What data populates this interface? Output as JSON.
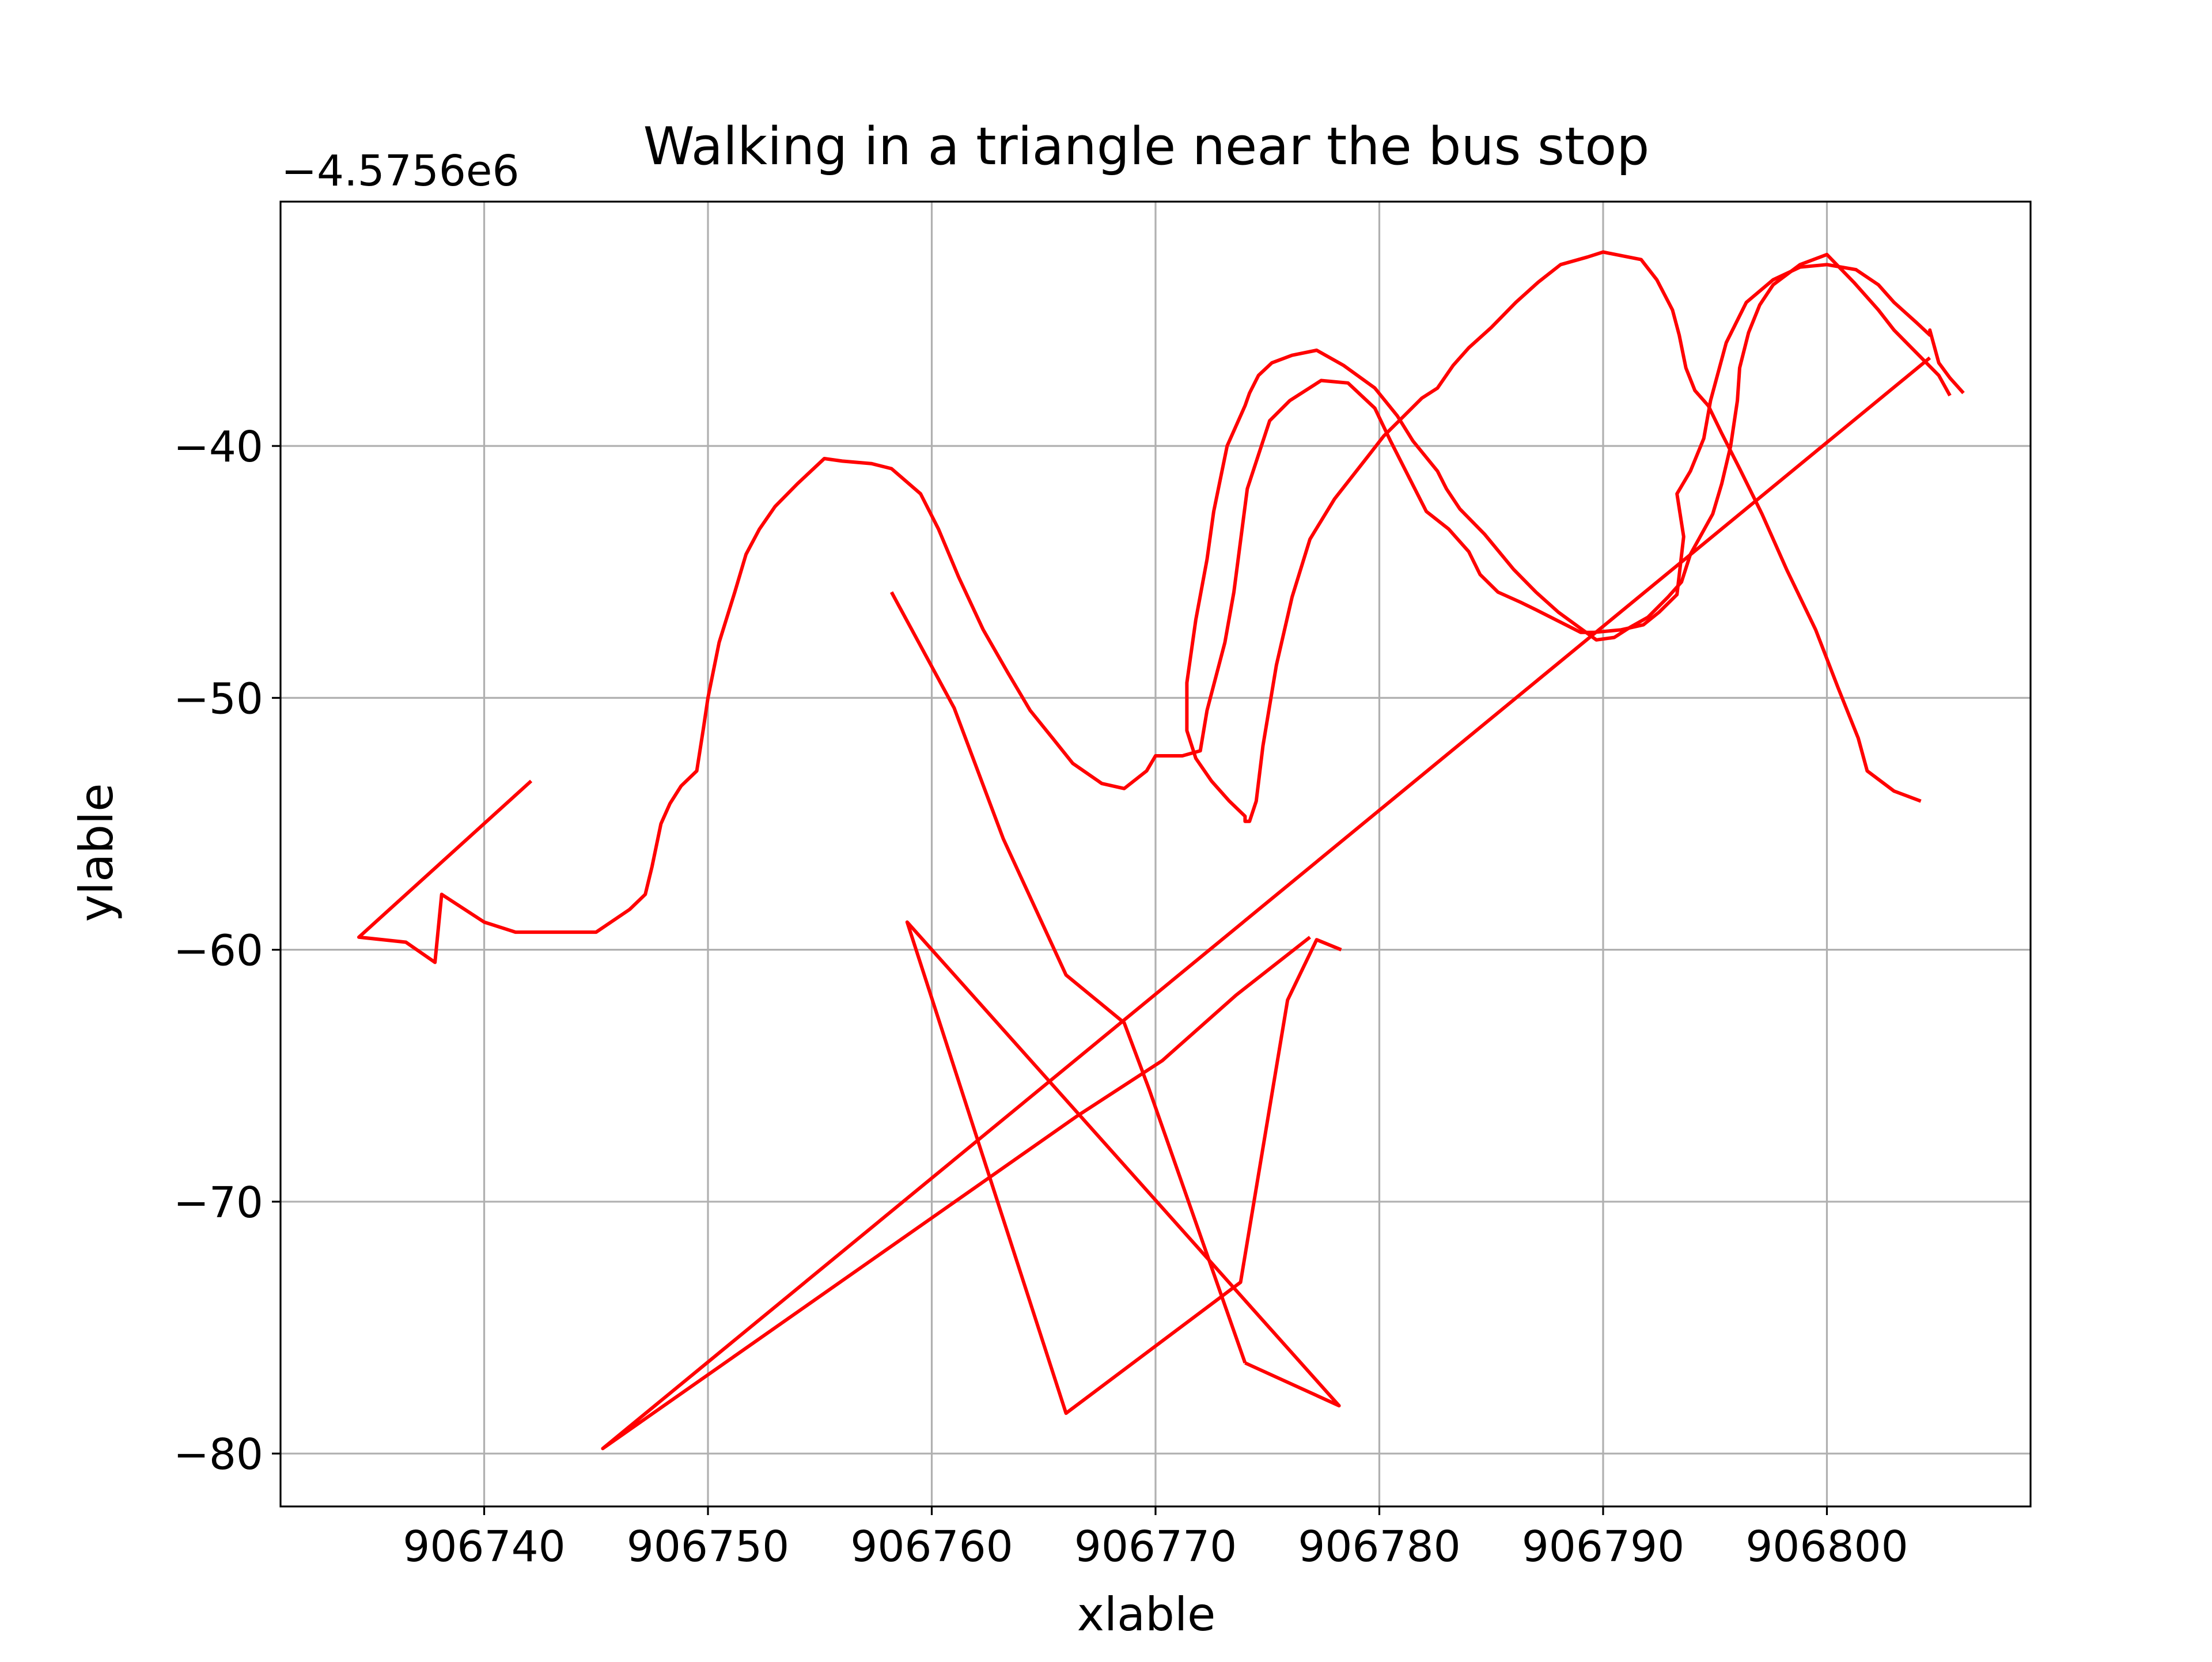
{
  "chart_data": {
    "type": "line",
    "title": "Walking in a triangle near the bus stop",
    "xlabel": "xlable",
    "ylabel": "ylable",
    "y_offset_label": "−4.5756e6",
    "xlim": [
      906730.9,
      906809.1
    ],
    "ylim": [
      -82.1,
      -30.3
    ],
    "xticks": [
      906740,
      906750,
      906760,
      906770,
      906780,
      906790,
      906800
    ],
    "xtick_labels": [
      "906740",
      "906750",
      "906760",
      "906770",
      "906780",
      "906790",
      "906800"
    ],
    "yticks": [
      -40,
      -50,
      -60,
      -70,
      -80
    ],
    "ytick_labels": [
      "−40",
      "−50",
      "−60",
      "−70",
      "−80"
    ],
    "grid": true,
    "colors": {
      "line": "#ff0000",
      "grid": "#b0b0b0",
      "axes": "#000000"
    },
    "series": [
      {
        "x": [
          906742.1,
          906734.4,
          906736.5,
          906737.8,
          906738.1,
          906740.0,
          906741.4,
          906745.0,
          906746.5,
          906747.2,
          906747.5,
          906747.9,
          906748.3,
          906748.8,
          906749.5,
          906749.8,
          906750.0,
          906750.5,
          906751.2,
          906751.7,
          906752.3,
          906753.0,
          906754.0,
          906755.2,
          906756.0,
          906757.3,
          906758.2,
          906759.5,
          906760.3,
          906761.2,
          906762.3,
          906763.4,
          906764.4,
          906765.4,
          906766.3,
          906767.6,
          906768.6,
          906769.6,
          906770.0,
          906771.2,
          906772.0,
          906772.3,
          906773.1,
          906773.5,
          906774.1,
          906775.1,
          906776.0,
          906777.4,
          906778.6,
          906779.8,
          906780.5,
          906781.3,
          906782.1,
          906783.1,
          906784.0,
          906784.5,
          906785.3,
          906786.3,
          906787.0,
          906789.0,
          906789.6,
          906790.8,
          906791.8,
          906792.5,
          906793.3,
          906793.6,
          906793.3,
          906793.9,
          906794.5,
          906794.8,
          906795.5,
          906796.4,
          906797.6,
          906798.8,
          906800.0,
          906801.3,
          906802.3,
          906803.0,
          906804.0,
          906804.6,
          906804.6,
          906805.0,
          906805.5,
          906806.1
        ],
        "y": [
          -53.3,
          -59.5,
          -59.7,
          -60.5,
          -57.8,
          -58.9,
          -59.3,
          -59.3,
          -58.4,
          -57.8,
          -56.7,
          -55.0,
          -54.2,
          -53.5,
          -52.9,
          -51.2,
          -50.0,
          -47.8,
          -45.8,
          -44.3,
          -43.3,
          -42.4,
          -41.5,
          -40.5,
          -40.6,
          -40.7,
          -40.9,
          -41.9,
          -43.3,
          -45.2,
          -47.3,
          -49.0,
          -50.5,
          -51.6,
          -52.6,
          -53.4,
          -53.6,
          -52.9,
          -52.3,
          -52.3,
          -52.1,
          -50.5,
          -47.8,
          -45.8,
          -41.7,
          -39.0,
          -38.2,
          -37.4,
          -37.5,
          -38.5,
          -39.8,
          -41.2,
          -42.6,
          -43.3,
          -44.2,
          -45.1,
          -45.8,
          -46.2,
          -46.5,
          -47.4,
          -47.4,
          -47.3,
          -47.1,
          -46.6,
          -45.9,
          -43.6,
          -41.9,
          -41.0,
          -39.7,
          -38.2,
          -35.9,
          -34.3,
          -33.4,
          -32.9,
          -32.8,
          -33.0,
          -33.6,
          -34.3,
          -35.1,
          -35.6,
          -35.4,
          -36.7,
          -37.3,
          -37.9
        ]
      },
      {
        "x": [
          906805.5,
          906805.0,
          906804.0,
          906803.0,
          906802.3,
          906801.2,
          906800.0,
          906798.8,
          906797.6,
          906797.0,
          906796.5,
          906796.1,
          906796.0,
          906795.7,
          906795.3,
          906794.9,
          906793.9,
          906793.5,
          906792.9,
          906792.0,
          906791.2,
          906790.5,
          906789.7,
          906788.0,
          906787.0,
          906786.0,
          906784.7,
          906783.6,
          906783.0,
          906782.6,
          906781.5,
          906780.8,
          906779.8,
          906778.4,
          906777.2,
          906776.1,
          906775.2,
          906774.6,
          906774.2,
          906774.0,
          906773.2,
          906772.6,
          906772.3,
          906771.8,
          906771.4,
          906771.4,
          906771.8,
          906772.5,
          906773.3,
          906774.0,
          906774.0,
          906774.2,
          906774.5,
          906774.8,
          906775.4,
          906776.1,
          906776.9,
          906778.0,
          906779.5,
          906780.2,
          906781.0,
          906781.9,
          906782.6,
          906783.3,
          906784.0,
          906785.0,
          906786.1,
          906787.1,
          906788.1,
          906789.3,
          906790.0,
          906791.7,
          906792.4,
          906793.1,
          906793.4,
          906793.7,
          906794.1,
          906794.7,
          906795.3,
          906796.1,
          906797.1,
          906798.2,
          906799.5,
          906800.5,
          906801.4,
          906801.8,
          906803.0,
          906804.2
        ],
        "y": [
          -38.0,
          -37.2,
          -36.3,
          -35.4,
          -34.6,
          -33.5,
          -32.4,
          -32.8,
          -33.6,
          -34.4,
          -35.5,
          -36.9,
          -38.2,
          -40.0,
          -41.5,
          -42.7,
          -44.3,
          -45.4,
          -46.0,
          -46.8,
          -47.2,
          -47.6,
          -47.7,
          -46.6,
          -45.8,
          -44.9,
          -43.5,
          -42.5,
          -41.7,
          -41.0,
          -39.8,
          -38.8,
          -37.7,
          -36.8,
          -36.2,
          -36.4,
          -36.7,
          -37.2,
          -37.9,
          -38.4,
          -40.0,
          -42.6,
          -44.5,
          -46.9,
          -49.4,
          -51.3,
          -52.4,
          -53.3,
          -54.1,
          -54.7,
          -54.9,
          -54.9,
          -54.1,
          -51.9,
          -48.7,
          -46.0,
          -43.7,
          -42.1,
          -40.4,
          -39.6,
          -38.9,
          -38.1,
          -37.7,
          -36.8,
          -36.1,
          -35.3,
          -34.3,
          -33.5,
          -32.8,
          -32.5,
          -32.3,
          -32.6,
          -33.4,
          -34.6,
          -35.6,
          -36.9,
          -37.8,
          -38.4,
          -39.5,
          -40.9,
          -42.7,
          -44.9,
          -47.3,
          -49.6,
          -51.6,
          -52.9,
          -53.7,
          -54.1
        ]
      },
      {
        "x": [
          906758.2,
          906761.0,
          906763.2,
          906766.0,
          906768.6,
          906769.7,
          906774.0
        ],
        "y": [
          -45.8,
          -50.4,
          -55.6,
          -61.0,
          -62.9,
          -65.5,
          -76.4
        ]
      },
      {
        "x": [
          906774.0,
          906778.2,
          906758.9,
          906766.0,
          906773.8,
          906775.9,
          906777.2,
          906778.3
        ],
        "y": [
          -76.4,
          -78.1,
          -58.9,
          -78.4,
          -73.2,
          -62.0,
          -59.6,
          -60.0
        ]
      },
      {
        "x": [
          906776.9,
          906773.6,
          906770.3,
          906766.5,
          906745.3,
          906804.6
        ],
        "y": [
          -59.5,
          -61.8,
          -64.4,
          -66.6,
          -79.8,
          -36.5
        ]
      }
    ]
  }
}
